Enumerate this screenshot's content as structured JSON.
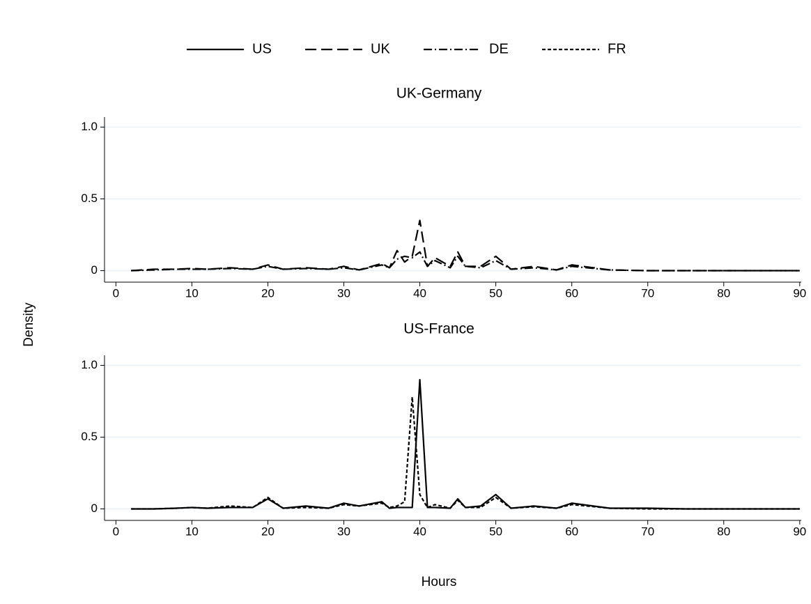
{
  "ylabel": "Density",
  "xlabel": "Hours",
  "chart_data": [
    {
      "type": "line",
      "title": "UK-Germany",
      "x": [
        2,
        5,
        8,
        10,
        12,
        15,
        18,
        20,
        22,
        25,
        28,
        30,
        32,
        35,
        36,
        37,
        38,
        39,
        40,
        41,
        42,
        44,
        45,
        46,
        48,
        50,
        52,
        55,
        58,
        60,
        65,
        70,
        75,
        80,
        85,
        90
      ],
      "series": [
        {
          "name": "UK",
          "color": "#000000",
          "dash": "long-dash",
          "values": [
            0,
            0.01,
            0.01,
            0.015,
            0.01,
            0.02,
            0.01,
            0.04,
            0.01,
            0.02,
            0.01,
            0.03,
            0.005,
            0.05,
            0.02,
            0.14,
            0.06,
            0.1,
            0.35,
            0.03,
            0.09,
            0.03,
            0.13,
            0.03,
            0.03,
            0.1,
            0.01,
            0.03,
            0.005,
            0.04,
            0.005,
            0,
            0,
            0,
            0,
            0
          ]
        },
        {
          "name": "DE",
          "color": "#000000",
          "dash": "dash-dot",
          "values": [
            0,
            0.005,
            0.01,
            0.01,
            0.01,
            0.015,
            0.01,
            0.03,
            0.01,
            0.015,
            0.01,
            0.02,
            0.005,
            0.04,
            0.02,
            0.08,
            0.1,
            0.09,
            0.13,
            0.03,
            0.07,
            0.02,
            0.1,
            0.03,
            0.02,
            0.07,
            0.01,
            0.02,
            0.005,
            0.03,
            0.005,
            0,
            0,
            0,
            0,
            0
          ]
        }
      ],
      "xlim": [
        -1.5,
        90.2
      ],
      "xticks": [
        0,
        10,
        20,
        30,
        40,
        50,
        60,
        70,
        80,
        90
      ],
      "ylim": [
        -0.08,
        1.07
      ],
      "yticks": [
        0,
        0.5,
        {
          "value": 1,
          "label": "1.0"
        }
      ],
      "grid": true
    },
    {
      "type": "line",
      "title": "US-France",
      "x": [
        2,
        5,
        8,
        10,
        12,
        15,
        18,
        20,
        22,
        25,
        28,
        30,
        32,
        35,
        36,
        37,
        38,
        39,
        40,
        41,
        42,
        44,
        45,
        46,
        48,
        50,
        52,
        55,
        58,
        60,
        65,
        70,
        75,
        80,
        85,
        90
      ],
      "series": [
        {
          "name": "US",
          "color": "#000000",
          "dash": "solid",
          "values": [
            0,
            0,
            0.005,
            0.01,
            0.005,
            0.01,
            0.01,
            0.07,
            0.005,
            0.02,
            0.005,
            0.04,
            0.02,
            0.05,
            0.005,
            0.01,
            0.01,
            0.01,
            0.9,
            0.01,
            0.01,
            0.005,
            0.07,
            0.01,
            0.02,
            0.1,
            0.005,
            0.02,
            0.005,
            0.04,
            0.005,
            0.005,
            0,
            0,
            0,
            0
          ]
        },
        {
          "name": "FR",
          "color": "#000000",
          "dash": "short-dash",
          "values": [
            0,
            0,
            0.005,
            0.01,
            0.005,
            0.02,
            0.01,
            0.08,
            0.005,
            0.01,
            0.005,
            0.03,
            0.02,
            0.04,
            0.01,
            0.02,
            0.05,
            0.78,
            0.1,
            0.01,
            0.03,
            0.005,
            0.06,
            0.01,
            0.01,
            0.08,
            0.005,
            0.015,
            0.005,
            0.03,
            0.005,
            0,
            0,
            0,
            0,
            0
          ]
        }
      ],
      "xlim": [
        -1.5,
        90.2
      ],
      "xticks": [
        0,
        10,
        20,
        30,
        40,
        50,
        60,
        70,
        80,
        90
      ],
      "ylim": [
        -0.08,
        1.07
      ],
      "yticks": [
        0,
        0.5,
        {
          "value": 1,
          "label": "1.0"
        }
      ],
      "grid": true
    }
  ]
}
